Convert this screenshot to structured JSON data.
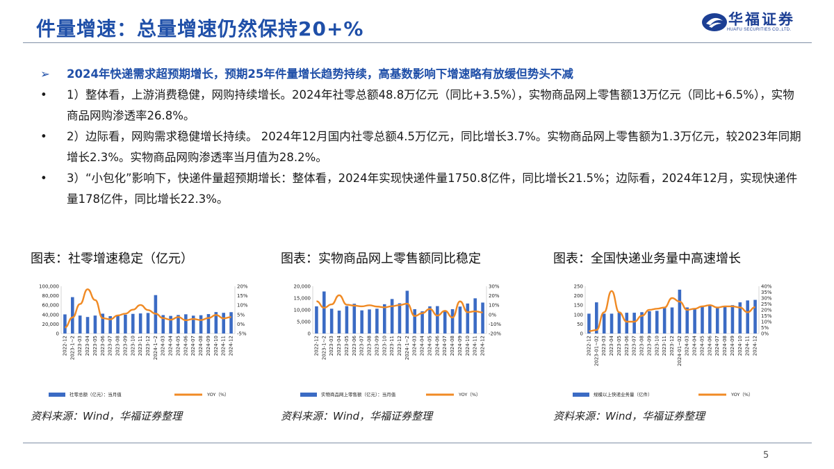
{
  "slide": {
    "title": "件量增速：总量增速仍然保持20+%",
    "logo_text": "华福证券",
    "logo_subtext": "HUAFU SECURITIES CO.,LTD.",
    "page_number": "5"
  },
  "bullets": {
    "head_mark": "➢",
    "head": "2024年快递需求超预期增长，预期25年件量增长趋势持续，高基数影响下增速略有放缓但势头不减",
    "items": [
      {
        "mark": "•",
        "text": "1）整体看，上游消费稳健，网购持续增长。2024年社零总额48.8万亿元（同比+3.5%），实物商品网上零售额13万亿元（同比+6.5%），实物商品网购渗透率26.8%。"
      },
      {
        "mark": "•",
        "text": "2）边际看，网购需求稳健增长持续。 2024年12月国内社零总额4.5万亿元，同比增长3.7%。实物商品网上零售额为1.3万亿元，较2023年同期增长2.3%。实物商品网购渗透率当月值为28.2%。"
      },
      {
        "mark": "•",
        "text": "3）“小包化”影响下，快递件量超预期增长：整体看，2024年实现快递件量1750.8亿件，同比增长21.5%；边际看，2024年12月，实现快递件量178亿件，同比增长22.3%。"
      }
    ]
  },
  "colors": {
    "title": "#1f4fa8",
    "bar": "#3b6bc4",
    "line": "#f08a24"
  },
  "charts": [
    {
      "title": "图表：社零增速稳定（亿元）",
      "source": "资料来源：Wind，华福证券整理"
    },
    {
      "title": "图表：实物商品网上零售额同比稳定",
      "source": "资料来源：Wind，华福证券整理"
    },
    {
      "title": "图表：全国快递业务量中高速增长",
      "source": "资料来源：Wind，华福证券整理"
    }
  ],
  "chart_data": [
    {
      "type": "bar",
      "categories": [
        "2022-12",
        "2023-1~2",
        "2023-03",
        "2023-04",
        "2023-05",
        "2023-06",
        "2023-07",
        "2023-08",
        "2023-09",
        "2023-10",
        "2023-11",
        "2023-12",
        "2024-1~2",
        "2024-03",
        "2024-04",
        "2024-05",
        "2024-06",
        "2024-07",
        "2024-08",
        "2024-09",
        "2024-10",
        "2024-11",
        "2024-12"
      ],
      "series": [
        {
          "name": "社零总额（亿元）：当月值",
          "type": "bar",
          "axis": "left",
          "values": [
            40500,
            77000,
            38000,
            35000,
            38000,
            42000,
            36800,
            37900,
            39800,
            41600,
            42500,
            43500,
            81300,
            39000,
            37300,
            39200,
            40700,
            37800,
            38700,
            41100,
            45400,
            43800,
            45200
          ]
        },
        {
          "name": "YOY（%）",
          "type": "line",
          "axis": "right",
          "values": [
            -1.8,
            3.5,
            10.6,
            18.4,
            12.7,
            3.1,
            2.5,
            4.6,
            5.5,
            7.6,
            10.1,
            7.4,
            5.5,
            3.1,
            2.3,
            3.7,
            2.0,
            2.7,
            2.1,
            3.2,
            4.8,
            3.0,
            3.7
          ]
        }
      ],
      "ylim_left": [
        0,
        100000
      ],
      "yticks_left": [
        "0",
        "20,000",
        "40,000",
        "60,000",
        "80,000",
        "100,000"
      ],
      "ylim_right": [
        -5,
        20
      ],
      "yticks_right": [
        "-5%",
        "0%",
        "5%",
        "10%",
        "15%",
        "20%"
      ]
    },
    {
      "type": "bar",
      "categories": [
        "2022-12",
        "2023-1~2",
        "2023-03",
        "2023-04",
        "2023-05",
        "2023-06",
        "2023-07",
        "2023-08",
        "2023-09",
        "2023-10",
        "2023-11",
        "2023-12",
        "2024-1~2",
        "2024-03",
        "2024-04",
        "2024-05",
        "2024-06",
        "2024-07",
        "2024-08",
        "2024-09",
        "2024-10",
        "2024-11",
        "2024-12"
      ],
      "series": [
        {
          "name": "实物商品网上零售额（亿元）：当月值",
          "type": "bar",
          "axis": "left",
          "values": [
            11500,
            17800,
            10500,
            9700,
            11600,
            12600,
            9800,
            10200,
            10500,
            12400,
            14600,
            12800,
            18100,
            10300,
            9400,
            11500,
            11600,
            9800,
            10300,
            11400,
            12700,
            14900,
            13100
          ]
        },
        {
          "name": "YOY（%）",
          "type": "line",
          "axis": "right",
          "values": [
            14.1,
            7.3,
            10.8,
            20.5,
            10.5,
            9.5,
            8.7,
            9.9,
            8.5,
            7.7,
            8.9,
            10.1,
            11.6,
            -1.5,
            1.5,
            6.0,
            -1.0,
            4.0,
            -3.0,
            14.0,
            2.5,
            3.5,
            2.3
          ]
        }
      ],
      "ylim_left": [
        0,
        20000
      ],
      "yticks_left": [
        "0",
        "5,000",
        "10,000",
        "15,000",
        "20,000"
      ],
      "ylim_right": [
        -20,
        30
      ],
      "yticks_right": [
        "-20%",
        "-10%",
        "0%",
        "10%",
        "20%",
        "30%"
      ]
    },
    {
      "type": "bar",
      "categories": [
        "2022-12",
        "2023-01~02",
        "2023-03",
        "2023-04",
        "2023-05",
        "2023-06",
        "2023-07",
        "2023-08",
        "2023-09",
        "2023-10",
        "2023-11",
        "2023-12",
        "2024-01~02",
        "2024-03",
        "2024-04",
        "2024-05",
        "2024-06",
        "2024-07",
        "2024-08",
        "2024-09",
        "2024-10",
        "2024-11",
        "2024-12"
      ],
      "series": [
        {
          "name": "规模以上快递业务量（亿件）",
          "type": "bar",
          "axis": "left",
          "values": [
            105,
            165,
            105,
            105,
            110,
            110,
            110,
            113,
            118,
            120,
            140,
            138,
            232,
            138,
            130,
            146,
            146,
            140,
            145,
            150,
            165,
            175,
            178
          ]
        },
        {
          "name": "YOY（%）",
          "type": "line",
          "axis": "right",
          "values": [
            2,
            3,
            18,
            36,
            18,
            10,
            10,
            15,
            20,
            21,
            22,
            30,
            27,
            20,
            21,
            23,
            24,
            22,
            23,
            23,
            22,
            18,
            22.3
          ]
        }
      ],
      "ylim_left": [
        0,
        250
      ],
      "yticks_left": [
        "0",
        "50",
        "100",
        "150",
        "200",
        "250"
      ],
      "ylim_right": [
        0,
        40
      ],
      "yticks_right": [
        "0%",
        "5%",
        "10%",
        "15%",
        "20%",
        "25%",
        "30%",
        "35%",
        "40%"
      ]
    }
  ]
}
